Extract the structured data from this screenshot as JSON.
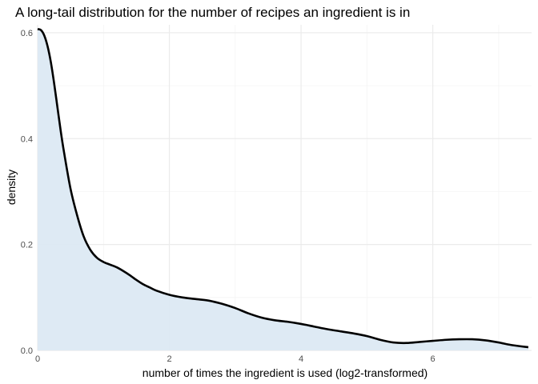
{
  "chart_data": {
    "type": "area",
    "title": "A long-tail distribution for the number of recipes an ingredient is in",
    "xlabel": "number of times the ingredient is used (log2-transformed)",
    "ylabel": "density",
    "xlim": [
      0,
      7.5
    ],
    "ylim": [
      0,
      0.615
    ],
    "grid": true,
    "legend": "none",
    "x_major_ticks": [
      0,
      2,
      4,
      6
    ],
    "x_minor_ticks": [
      1,
      3,
      5,
      7
    ],
    "y_major_ticks": [
      0.0,
      0.2,
      0.4,
      0.6
    ],
    "y_minor_ticks": [
      0.1,
      0.3,
      0.5
    ],
    "x_tick_labels": [
      "0",
      "2",
      "4",
      "6"
    ],
    "y_tick_labels": [
      "0.0",
      "0.2",
      "0.4",
      "0.6"
    ],
    "series": [
      {
        "x": [
          0.0,
          0.05,
          0.1,
          0.15,
          0.2,
          0.25,
          0.3,
          0.35,
          0.4,
          0.5,
          0.6,
          0.7,
          0.8,
          0.9,
          1.0,
          1.1,
          1.2,
          1.3,
          1.4,
          1.5,
          1.6,
          1.7,
          1.8,
          2.0,
          2.2,
          2.4,
          2.6,
          2.8,
          3.0,
          3.2,
          3.4,
          3.6,
          3.8,
          4.0,
          4.2,
          4.4,
          4.6,
          4.8,
          5.0,
          5.2,
          5.4,
          5.6,
          5.8,
          6.0,
          6.2,
          6.4,
          6.6,
          6.8,
          7.0,
          7.2,
          7.45
        ],
        "y": [
          0.607,
          0.605,
          0.595,
          0.575,
          0.545,
          0.505,
          0.46,
          0.415,
          0.375,
          0.305,
          0.255,
          0.215,
          0.19,
          0.175,
          0.167,
          0.162,
          0.157,
          0.15,
          0.142,
          0.133,
          0.125,
          0.119,
          0.113,
          0.105,
          0.1,
          0.097,
          0.094,
          0.088,
          0.08,
          0.07,
          0.062,
          0.057,
          0.054,
          0.05,
          0.045,
          0.04,
          0.036,
          0.032,
          0.027,
          0.02,
          0.015,
          0.014,
          0.016,
          0.018,
          0.02,
          0.021,
          0.021,
          0.019,
          0.015,
          0.01,
          0.006
        ]
      }
    ],
    "colors": {
      "fill": "#dce9f3",
      "line": "#000000",
      "grid_major": "#ebebeb",
      "grid_minor": "#f4f4f4"
    }
  }
}
